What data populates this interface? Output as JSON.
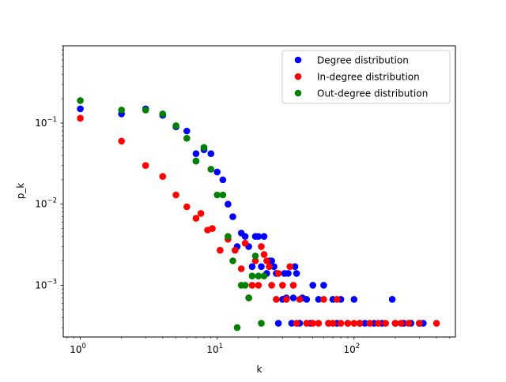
{
  "chart_data": {
    "type": "scatter",
    "xlabel": "k",
    "ylabel": "p_k",
    "xscale": "log",
    "yscale": "log",
    "xlim": [
      0.75,
      550
    ],
    "ylim": [
      0.00023,
      0.9
    ],
    "xticks": [
      {
        "value": 1,
        "base": "10",
        "exp": "0"
      },
      {
        "value": 10,
        "base": "10",
        "exp": "1"
      },
      {
        "value": 100,
        "base": "10",
        "exp": "2"
      }
    ],
    "yticks": [
      {
        "value": 0.001,
        "base": "10",
        "exp": "−3"
      },
      {
        "value": 0.01,
        "base": "10",
        "exp": "−2"
      },
      {
        "value": 0.1,
        "base": "10",
        "exp": "−1"
      }
    ],
    "grid": false,
    "legend_position": "top-right",
    "series": [
      {
        "name": "Degree distribution",
        "color": "#0000ff",
        "points": [
          [
            1,
            0.15
          ],
          [
            2,
            0.13
          ],
          [
            3,
            0.15
          ],
          [
            4,
            0.125
          ],
          [
            5,
            0.09
          ],
          [
            6,
            0.08
          ],
          [
            7,
            0.042
          ],
          [
            7,
            0.034
          ],
          [
            8,
            0.047
          ],
          [
            8,
            0.05
          ],
          [
            9,
            0.042
          ],
          [
            10,
            0.025
          ],
          [
            11,
            0.02
          ],
          [
            12,
            0.01
          ],
          [
            13,
            0.007
          ],
          [
            14,
            0.003
          ],
          [
            15,
            0.0044
          ],
          [
            16,
            0.004
          ],
          [
            17,
            0.003
          ],
          [
            18,
            0.0017
          ],
          [
            19,
            0.004
          ],
          [
            20,
            0.004
          ],
          [
            21,
            0.0017
          ],
          [
            22,
            0.004
          ],
          [
            23,
            0.0014
          ],
          [
            24,
            0.002
          ],
          [
            25,
            0.002
          ],
          [
            26,
            0.0017
          ],
          [
            27,
            0.0014
          ],
          [
            28,
            0.00034
          ],
          [
            30,
            0.00067
          ],
          [
            31,
            0.0014
          ],
          [
            32,
            0.0007
          ],
          [
            33,
            0.0014
          ],
          [
            35,
            0.00034
          ],
          [
            36,
            0.0007
          ],
          [
            37,
            0.0017
          ],
          [
            38,
            0.0014
          ],
          [
            40,
            0.00034
          ],
          [
            42,
            0.0007
          ],
          [
            45,
            0.00067
          ],
          [
            48,
            0.00034
          ],
          [
            50,
            0.001
          ],
          [
            55,
            0.00067
          ],
          [
            60,
            0.001
          ],
          [
            65,
            0.00034
          ],
          [
            70,
            0.00067
          ],
          [
            75,
            0.00034
          ],
          [
            80,
            0.00067
          ],
          [
            90,
            0.00034
          ],
          [
            100,
            0.00067
          ],
          [
            110,
            0.00034
          ],
          [
            120,
            0.00034
          ],
          [
            140,
            0.00034
          ],
          [
            160,
            0.00034
          ],
          [
            190,
            0.00067
          ],
          [
            200,
            0.00034
          ],
          [
            230,
            0.00034
          ],
          [
            260,
            0.00034
          ],
          [
            300,
            0.00034
          ],
          [
            320,
            0.00034
          ]
        ]
      },
      {
        "name": "In-degree distribution",
        "color": "#ff0000",
        "points": [
          [
            1,
            0.115
          ],
          [
            2,
            0.06
          ],
          [
            3,
            0.03
          ],
          [
            4,
            0.022
          ],
          [
            5,
            0.013
          ],
          [
            6,
            0.0093
          ],
          [
            7,
            0.0067
          ],
          [
            7.6,
            0.0077
          ],
          [
            8.5,
            0.0048
          ],
          [
            9.2,
            0.005
          ],
          [
            10.5,
            0.0027
          ],
          [
            12,
            0.0037
          ],
          [
            13.5,
            0.0027
          ],
          [
            15,
            0.0016
          ],
          [
            16,
            0.0033
          ],
          [
            17,
            0.0007
          ],
          [
            18,
            0.001
          ],
          [
            19,
            0.002
          ],
          [
            20,
            0.001
          ],
          [
            21,
            0.003
          ],
          [
            22,
            0.0024
          ],
          [
            23,
            0.002
          ],
          [
            24,
            0.0017
          ],
          [
            25,
            0.001
          ],
          [
            27,
            0.00067
          ],
          [
            28,
            0.0014
          ],
          [
            30,
            0.001
          ],
          [
            32,
            0.00067
          ],
          [
            34,
            0.0017
          ],
          [
            36,
            0.001
          ],
          [
            38,
            0.00034
          ],
          [
            40,
            0.00067
          ],
          [
            45,
            0.00034
          ],
          [
            50,
            0.00034
          ],
          [
            55,
            0.00034
          ],
          [
            60,
            0.00067
          ],
          [
            65,
            0.00034
          ],
          [
            70,
            0.00034
          ],
          [
            75,
            0.00067
          ],
          [
            80,
            0.00034
          ],
          [
            90,
            0.00034
          ],
          [
            100,
            0.00034
          ],
          [
            110,
            0.00034
          ],
          [
            130,
            0.00034
          ],
          [
            150,
            0.00034
          ],
          [
            170,
            0.00034
          ],
          [
            200,
            0.00034
          ],
          [
            220,
            0.00034
          ],
          [
            250,
            0.00034
          ],
          [
            300,
            0.00034
          ],
          [
            400,
            0.00034
          ]
        ]
      },
      {
        "name": "Out-degree distribution",
        "color": "#008000",
        "points": [
          [
            1,
            0.19
          ],
          [
            2,
            0.145
          ],
          [
            3,
            0.145
          ],
          [
            4,
            0.13
          ],
          [
            5,
            0.093
          ],
          [
            6,
            0.065
          ],
          [
            7,
            0.034
          ],
          [
            8,
            0.05
          ],
          [
            9,
            0.027
          ],
          [
            10,
            0.013
          ],
          [
            11,
            0.013
          ],
          [
            12,
            0.004
          ],
          [
            13,
            0.002
          ],
          [
            14,
            0.0003
          ],
          [
            15,
            0.001
          ],
          [
            16,
            0.001
          ],
          [
            17,
            0.0007
          ],
          [
            18,
            0.0013
          ],
          [
            19,
            0.0023
          ],
          [
            20,
            0.0013
          ],
          [
            21,
            0.00034
          ],
          [
            22,
            0.0013
          ]
        ]
      }
    ]
  }
}
